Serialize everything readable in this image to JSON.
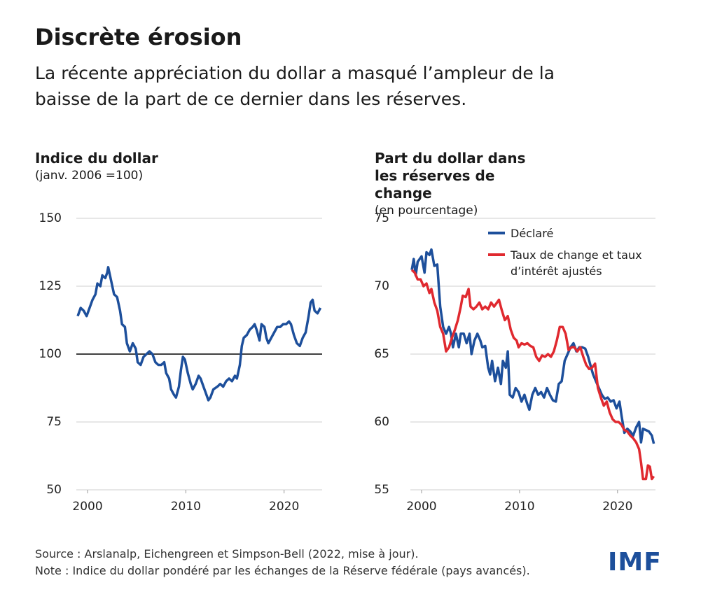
{
  "header": {
    "title": "Discrète érosion",
    "subtitle": "La récente appréciation du dollar a masqué l’ampleur de la baisse de la part de ce dernier dans les réserves."
  },
  "footer": {
    "source": "Source : Arslanalp, Eichengreen et Simpson-Bell (2022, mise à jour).",
    "note": "Note : Indice du dollar pondéré par les échanges de la Réserve fédérale (pays avancés).",
    "logo": "IMF"
  },
  "chart_data": [
    {
      "type": "line",
      "title": "Indice du dollar",
      "subtitle": "(janv. 2006 =100)",
      "grid": true,
      "reference_line": 100,
      "xlim": [
        1998,
        2024.3
      ],
      "xticks": [
        2000,
        2010,
        2020
      ],
      "ylim": [
        50,
        150
      ],
      "yticks": [
        50,
        75,
        100,
        125,
        150
      ],
      "series": [
        {
          "name": "Indice du dollar",
          "color": "#1d4f9b",
          "x": [
            1999.0,
            1999.3,
            1999.6,
            1999.9,
            2000.2,
            2000.5,
            2000.8,
            2001.0,
            2001.3,
            2001.5,
            2001.8,
            2002.0,
            2002.1,
            2002.4,
            2002.7,
            2003.0,
            2003.3,
            2003.5,
            2003.8,
            2004.0,
            2004.3,
            2004.6,
            2004.9,
            2005.1,
            2005.4,
            2005.7,
            2006.0,
            2006.3,
            2006.6,
            2006.9,
            2007.2,
            2007.5,
            2007.8,
            2008.0,
            2008.3,
            2008.5,
            2008.8,
            2009.0,
            2009.3,
            2009.5,
            2009.7,
            2009.9,
            2010.2,
            2010.5,
            2010.7,
            2011.0,
            2011.3,
            2011.5,
            2011.8,
            2012.0,
            2012.3,
            2012.5,
            2012.8,
            2013.2,
            2013.5,
            2013.8,
            2014.1,
            2014.4,
            2014.7,
            2015.0,
            2015.2,
            2015.5,
            2015.7,
            2015.9,
            2016.2,
            2016.5,
            2016.8,
            2017.0,
            2017.2,
            2017.5,
            2017.7,
            2018.0,
            2018.2,
            2018.4,
            2018.7,
            2019.0,
            2019.3,
            2019.6,
            2019.9,
            2020.2,
            2020.5,
            2020.7,
            2021.0,
            2021.3,
            2021.6,
            2021.9,
            2022.2,
            2022.5,
            2022.7,
            2022.9,
            2023.1,
            2023.4,
            2023.7
          ],
          "values": [
            114,
            117,
            116,
            114,
            117,
            120,
            122,
            126,
            125,
            129,
            128,
            130,
            132,
            127,
            122,
            121,
            116,
            111,
            110,
            104,
            101,
            104,
            102,
            97,
            96,
            99,
            100,
            101,
            100,
            97,
            96,
            96,
            97,
            93,
            91,
            87,
            85,
            84,
            88,
            94,
            99,
            98,
            93,
            89,
            87,
            89,
            92,
            91,
            88,
            86,
            83,
            84,
            87,
            88,
            89,
            88,
            90,
            91,
            90,
            92,
            91,
            96,
            103,
            106,
            107,
            109,
            110,
            111,
            109,
            105,
            111,
            110,
            106,
            104,
            106,
            108,
            110,
            110,
            111,
            111,
            112,
            111,
            107,
            104,
            103,
            106,
            108,
            114,
            119,
            120,
            116,
            115,
            117
          ]
        }
      ]
    },
    {
      "type": "line",
      "title": "Part du dollar dans les réserves de change",
      "subtitle": "(en pourcentage)",
      "grid": true,
      "legend": "top-right",
      "xlim": [
        1998,
        2024.3
      ],
      "xticks": [
        2000,
        2010,
        2020
      ],
      "ylim": [
        55,
        75
      ],
      "yticks": [
        55,
        60,
        65,
        70,
        75
      ],
      "series": [
        {
          "name": "Déclaré",
          "color": "#1d4f9b",
          "x": [
            1999.0,
            1999.2,
            1999.4,
            1999.6,
            2000.0,
            2000.3,
            2000.5,
            2000.8,
            2001.0,
            2001.3,
            2001.6,
            2001.9,
            2002.2,
            2002.5,
            2002.8,
            2003.0,
            2003.2,
            2003.5,
            2003.8,
            2004.0,
            2004.3,
            2004.6,
            2004.9,
            2005.1,
            2005.4,
            2005.7,
            2006.0,
            2006.2,
            2006.5,
            2006.8,
            2007.0,
            2007.2,
            2007.5,
            2007.8,
            2008.1,
            2008.3,
            2008.6,
            2008.8,
            2009.0,
            2009.3,
            2009.6,
            2009.9,
            2010.2,
            2010.5,
            2010.8,
            2011.0,
            2011.3,
            2011.6,
            2011.9,
            2012.2,
            2012.5,
            2012.8,
            2013.1,
            2013.4,
            2013.7,
            2014.0,
            2014.3,
            2014.6,
            2014.9,
            2015.2,
            2015.5,
            2015.8,
            2016.1,
            2016.4,
            2016.7,
            2017.0,
            2017.3,
            2017.5,
            2017.8,
            2018.1,
            2018.4,
            2018.7,
            2019.0,
            2019.3,
            2019.6,
            2019.9,
            2020.2,
            2020.4,
            2020.7,
            2021.0,
            2021.3,
            2021.6,
            2021.9,
            2022.2,
            2022.4,
            2022.6,
            2022.9,
            2023.2,
            2023.5,
            2023.7
          ],
          "values": [
            71.2,
            72.0,
            70.8,
            71.8,
            72.2,
            71.0,
            72.5,
            72.3,
            72.7,
            71.5,
            71.6,
            68.5,
            67.0,
            66.5,
            67.0,
            66.5,
            65.5,
            66.5,
            65.5,
            66.5,
            66.5,
            65.8,
            66.5,
            65.0,
            66.0,
            66.5,
            66.0,
            65.5,
            65.6,
            64.0,
            63.5,
            64.5,
            63.0,
            64.0,
            62.8,
            64.5,
            64.0,
            65.2,
            62.0,
            61.8,
            62.5,
            62.2,
            61.5,
            62.0,
            61.3,
            60.9,
            62.0,
            62.5,
            62.0,
            62.2,
            61.8,
            62.5,
            62.0,
            61.6,
            61.5,
            62.8,
            63.0,
            64.5,
            65.0,
            65.5,
            65.8,
            65.2,
            65.5,
            65.5,
            65.4,
            64.8,
            64.0,
            63.5,
            63.0,
            62.5,
            62.0,
            61.7,
            61.8,
            61.5,
            61.6,
            61.0,
            61.5,
            60.5,
            59.2,
            59.5,
            59.3,
            59.0,
            59.6,
            60.0,
            58.5,
            59.5,
            59.4,
            59.3,
            59.0,
            58.4
          ]
        },
        {
          "name": "Taux de change et taux d’intérêt ajustés",
          "color": "#e0292f",
          "x": [
            1999.0,
            1999.3,
            1999.6,
            1999.9,
            2000.2,
            2000.5,
            2000.8,
            2001.0,
            2001.3,
            2001.6,
            2001.9,
            2002.2,
            2002.5,
            2002.8,
            2003.1,
            2003.4,
            2003.7,
            2004.0,
            2004.2,
            2004.5,
            2004.8,
            2005.0,
            2005.3,
            2005.6,
            2005.9,
            2006.2,
            2006.5,
            2006.8,
            2007.1,
            2007.4,
            2007.7,
            2007.9,
            2008.2,
            2008.5,
            2008.8,
            2009.1,
            2009.4,
            2009.7,
            2009.9,
            2010.2,
            2010.5,
            2010.8,
            2011.1,
            2011.4,
            2011.7,
            2012.0,
            2012.3,
            2012.6,
            2012.9,
            2013.2,
            2013.5,
            2013.8,
            2014.1,
            2014.4,
            2014.7,
            2015.0,
            2015.3,
            2015.6,
            2015.9,
            2016.2,
            2016.5,
            2016.8,
            2017.1,
            2017.4,
            2017.7,
            2018.0,
            2018.3,
            2018.6,
            2018.9,
            2019.2,
            2019.5,
            2019.8,
            2020.1,
            2020.4,
            2020.7,
            2021.0,
            2021.3,
            2021.6,
            2021.9,
            2022.2,
            2022.4,
            2022.6,
            2022.9,
            2023.1,
            2023.3,
            2023.5,
            2023.7
          ],
          "values": [
            71.2,
            71.0,
            70.5,
            70.5,
            70.0,
            70.2,
            69.5,
            69.8,
            68.8,
            68.2,
            67.0,
            66.5,
            65.2,
            65.5,
            66.2,
            66.8,
            67.5,
            68.5,
            69.3,
            69.2,
            69.8,
            68.5,
            68.3,
            68.5,
            68.8,
            68.3,
            68.5,
            68.3,
            68.8,
            68.5,
            68.8,
            69.0,
            68.2,
            67.5,
            67.8,
            66.8,
            66.2,
            66.0,
            65.5,
            65.8,
            65.7,
            65.8,
            65.6,
            65.5,
            64.8,
            64.5,
            64.9,
            64.8,
            65.0,
            64.8,
            65.2,
            66.0,
            67.0,
            67.0,
            66.5,
            65.3,
            65.5,
            65.5,
            65.2,
            65.5,
            64.8,
            64.2,
            63.9,
            64.0,
            64.3,
            62.5,
            61.8,
            61.2,
            61.5,
            60.7,
            60.2,
            60.0,
            60.0,
            59.8,
            59.4,
            59.3,
            59.0,
            58.8,
            58.5,
            58.0,
            57.0,
            55.8,
            55.8,
            56.8,
            56.7,
            55.8,
            56.0
          ]
        }
      ]
    }
  ]
}
